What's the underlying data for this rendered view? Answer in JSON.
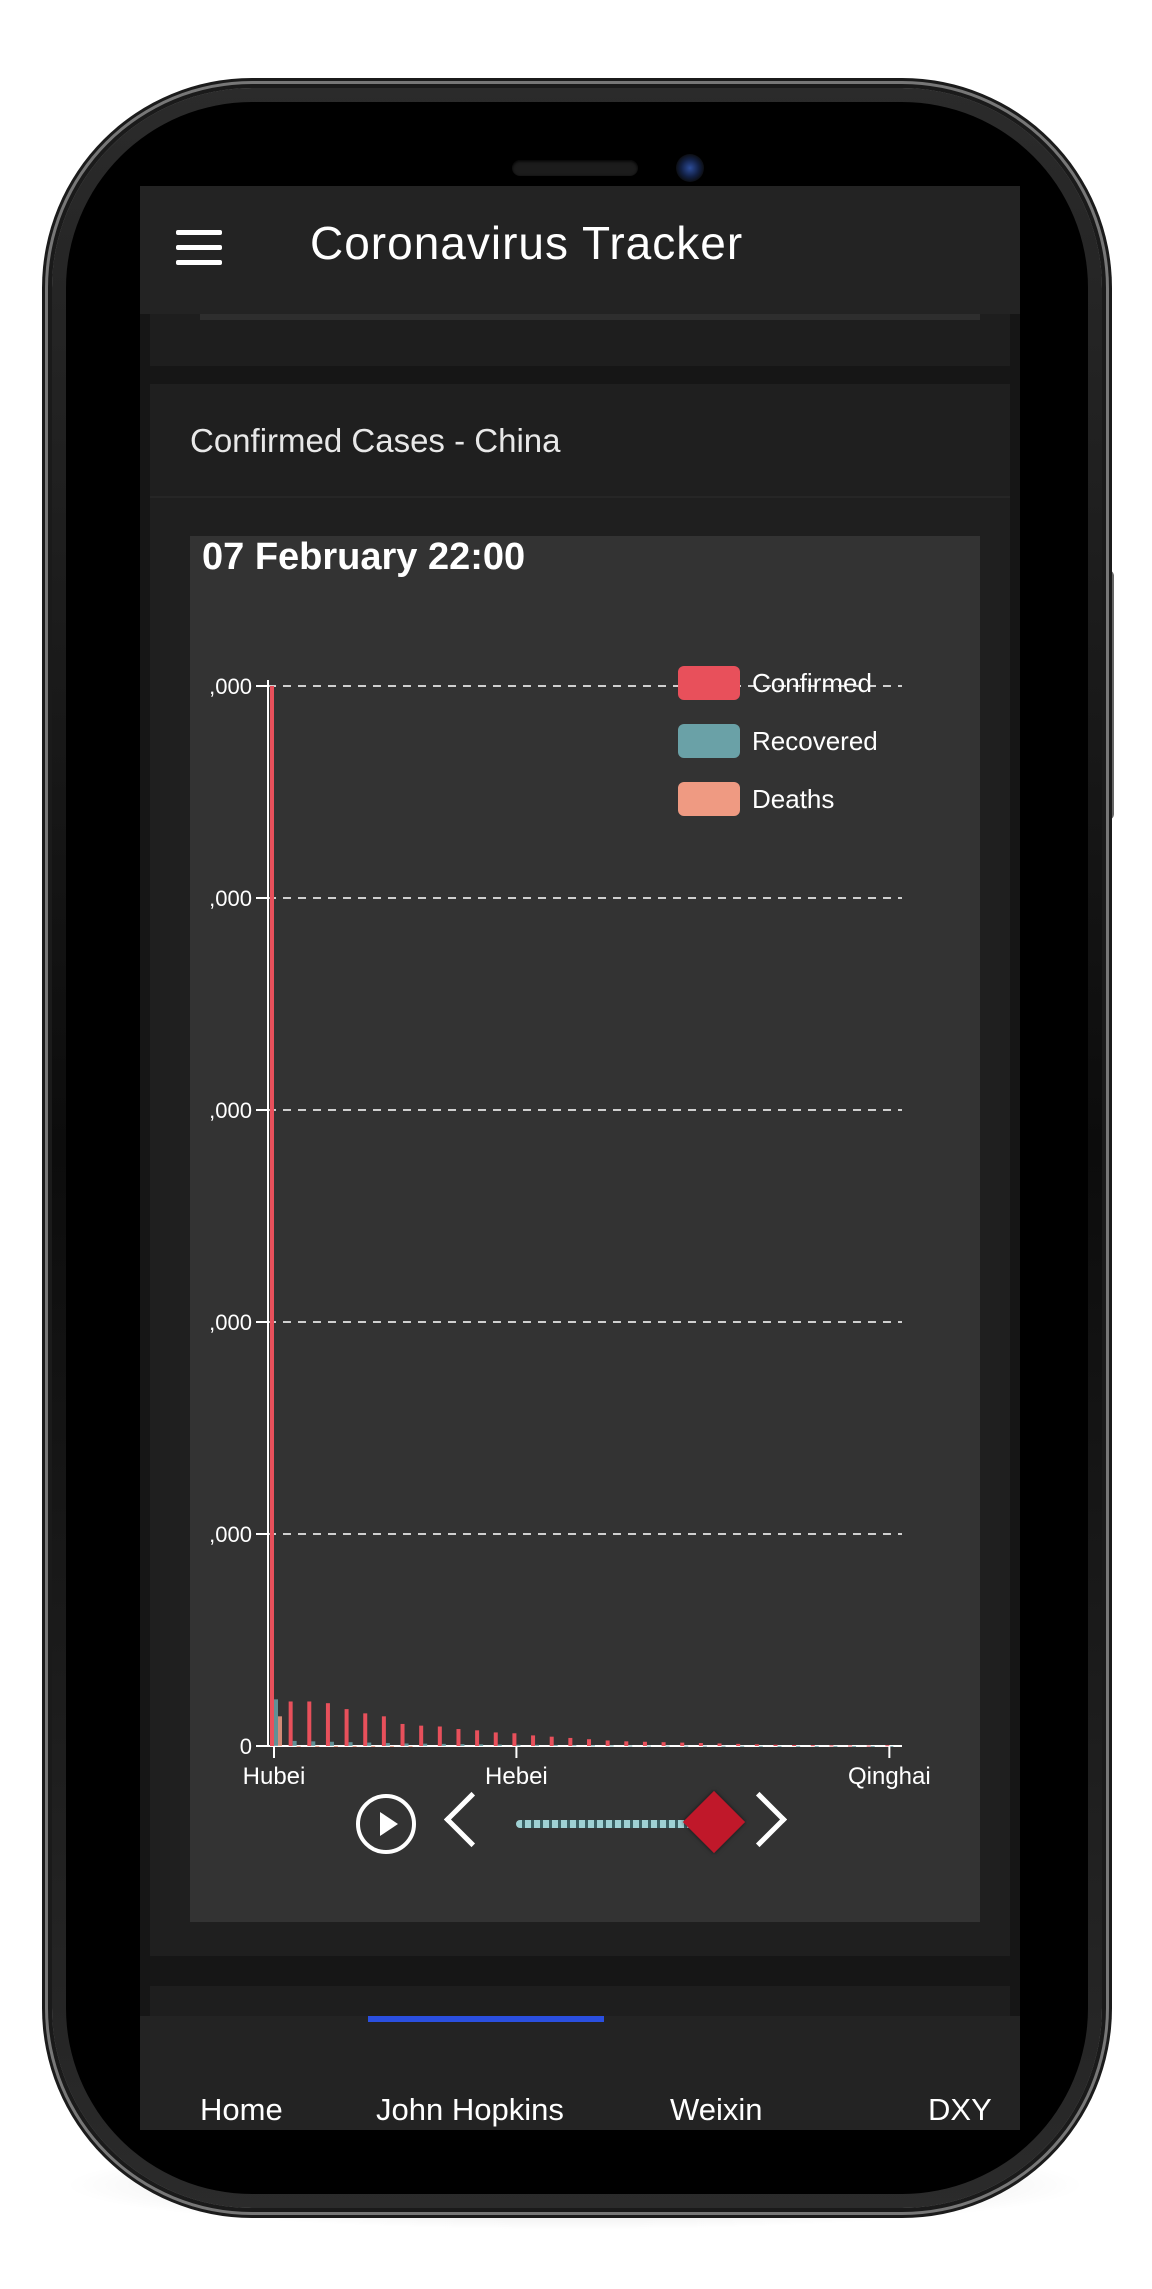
{
  "app": {
    "title": "Coronavirus Tracker"
  },
  "card": {
    "title": "Confirmed Cases - China"
  },
  "chart": {
    "date_label": "07 February 22:00"
  },
  "chart_data": {
    "type": "bar",
    "y_tick_labels": [
      ",000",
      ",000",
      ",000",
      ",000",
      ",000",
      "0"
    ],
    "y_tick_values": [
      25000,
      20000,
      15000,
      10000,
      5000,
      0
    ],
    "ylim": [
      0,
      25000
    ],
    "x_tick_labels": [
      "Hubei",
      "Hebei",
      "Qinghai"
    ],
    "legend": [
      "Confirmed",
      "Recovered",
      "Deaths"
    ],
    "legend_position": "top-right",
    "grid": true,
    "categories": [
      "Hubei",
      "",
      "",
      "",
      "",
      "",
      "",
      "",
      "",
      "",
      "",
      "",
      "",
      "Hebei",
      "",
      "",
      "",
      "",
      "",
      "",
      "",
      "",
      "",
      "",
      "",
      "",
      "",
      "",
      "",
      "",
      "",
      "",
      "",
      "Qinghai"
    ],
    "series": [
      {
        "name": "Confirmed",
        "values": [
          25000,
          1050,
          1050,
          1010,
          870,
          770,
          700,
          520,
          480,
          460,
          400,
          370,
          320,
          300,
          250,
          220,
          190,
          160,
          130,
          110,
          100,
          90,
          80,
          70,
          60,
          50,
          40,
          30,
          25,
          20,
          15,
          12,
          10,
          18
        ]
      },
      {
        "name": "Recovered",
        "values": [
          1100,
          120,
          110,
          100,
          90,
          80,
          70,
          60,
          55,
          50,
          45,
          40,
          35,
          30,
          28,
          25,
          20,
          18,
          15,
          12,
          10,
          9,
          8,
          7,
          6,
          5,
          4,
          3,
          3,
          2,
          2,
          1,
          1,
          1
        ]
      },
      {
        "name": "Deaths",
        "values": [
          700,
          2,
          2,
          1,
          1,
          1,
          1,
          1,
          0,
          0,
          0,
          0,
          0,
          0,
          0,
          0,
          0,
          0,
          0,
          0,
          0,
          0,
          0,
          0,
          0,
          0,
          0,
          0,
          0,
          0,
          0,
          0,
          0,
          0
        ]
      }
    ]
  },
  "colors": {
    "confirmed": "#e8505b",
    "recovered": "#6aa1a7",
    "deaths": "#ef9a82",
    "tab_indicator": "#2a4fe0",
    "slider_thumb": "#c0182a"
  },
  "nav": {
    "tabs": [
      {
        "label": "Home"
      },
      {
        "label": "John Hopkins"
      },
      {
        "label": "Weixin"
      },
      {
        "label": "DXY"
      }
    ],
    "active_index": 1
  },
  "icons": {
    "menu": "hamburger-menu-icon",
    "play": "play-circle-icon",
    "prev": "chevron-left-icon",
    "next": "chevron-right-icon"
  }
}
